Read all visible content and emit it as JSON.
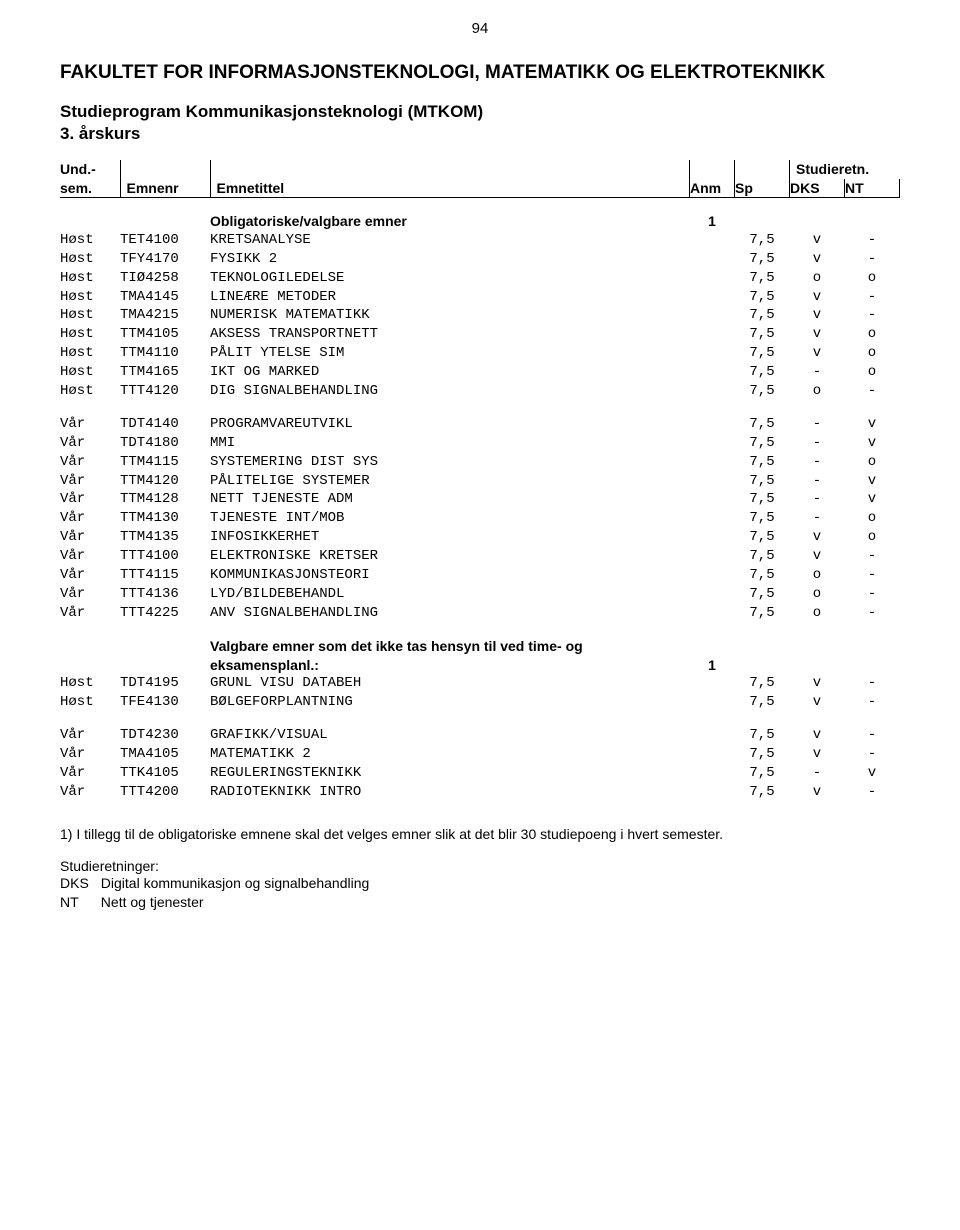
{
  "page_number": "94",
  "faculty_title": "FAKULTET FOR INFORMASJONSTEKNOLOGI, MATEMATIKK OG ELEKTROTEKNIKK",
  "program_title": "Studieprogram Kommunikasjonsteknologi (MTKOM)",
  "year_label": "3. årskurs",
  "headers": {
    "sem_line1": "Und.-",
    "sem_line2": "sem.",
    "emnenr": "Emnenr",
    "emnetittel": "Emnetittel",
    "anm": "Anm",
    "sp": "Sp",
    "studieretn": "Studieretn.",
    "r1": "DKS",
    "r2": "NT"
  },
  "section1_heading": "Obligatoriske/valgbare emner",
  "section1_anm": "1",
  "section1_rows": [
    {
      "sem": "Høst",
      "code": "TET4100",
      "title": "KRETSANALYSE",
      "sp": "7,5",
      "r1": "v",
      "r2": "-"
    },
    {
      "sem": "Høst",
      "code": "TFY4170",
      "title": "FYSIKK 2",
      "sp": "7,5",
      "r1": "v",
      "r2": "-"
    },
    {
      "sem": "Høst",
      "code": "TIØ4258",
      "title": "TEKNOLOGILEDELSE",
      "sp": "7,5",
      "r1": "o",
      "r2": "o"
    },
    {
      "sem": "Høst",
      "code": "TMA4145",
      "title": "LINEÆRE METODER",
      "sp": "7,5",
      "r1": "v",
      "r2": "-"
    },
    {
      "sem": "Høst",
      "code": "TMA4215",
      "title": "NUMERISK MATEMATIKK",
      "sp": "7,5",
      "r1": "v",
      "r2": "-"
    },
    {
      "sem": "Høst",
      "code": "TTM4105",
      "title": "AKSESS TRANSPORTNETT",
      "sp": "7,5",
      "r1": "v",
      "r2": "o"
    },
    {
      "sem": "Høst",
      "code": "TTM4110",
      "title": "PÅLIT YTELSE SIM",
      "sp": "7,5",
      "r1": "v",
      "r2": "o"
    },
    {
      "sem": "Høst",
      "code": "TTM4165",
      "title": "IKT OG MARKED",
      "sp": "7,5",
      "r1": "-",
      "r2": "o"
    },
    {
      "sem": "Høst",
      "code": "TTT4120",
      "title": "DIG SIGNALBEHANDLING",
      "sp": "7,5",
      "r1": "o",
      "r2": "-"
    }
  ],
  "section2_rows": [
    {
      "sem": "Vår",
      "code": "TDT4140",
      "title": "PROGRAMVAREUTVIKL",
      "sp": "7,5",
      "r1": "-",
      "r2": "v"
    },
    {
      "sem": "Vår",
      "code": "TDT4180",
      "title": "MMI",
      "sp": "7,5",
      "r1": "-",
      "r2": "v"
    },
    {
      "sem": "Vår",
      "code": "TTM4115",
      "title": "SYSTEMERING DIST SYS",
      "sp": "7,5",
      "r1": "-",
      "r2": "o"
    },
    {
      "sem": "Vår",
      "code": "TTM4120",
      "title": "PÅLITELIGE SYSTEMER",
      "sp": "7,5",
      "r1": "-",
      "r2": "v"
    },
    {
      "sem": "Vår",
      "code": "TTM4128",
      "title": "NETT TJENESTE ADM",
      "sp": "7,5",
      "r1": "-",
      "r2": "v"
    },
    {
      "sem": "Vår",
      "code": "TTM4130",
      "title": "TJENESTE INT/MOB",
      "sp": "7,5",
      "r1": "-",
      "r2": "o"
    },
    {
      "sem": "Vår",
      "code": "TTM4135",
      "title": "INFOSIKKERHET",
      "sp": "7,5",
      "r1": "v",
      "r2": "o"
    },
    {
      "sem": "Vår",
      "code": "TTT4100",
      "title": "ELEKTRONISKE KRETSER",
      "sp": "7,5",
      "r1": "v",
      "r2": "-"
    },
    {
      "sem": "Vår",
      "code": "TTT4115",
      "title": "KOMMUNIKASJONSTEORI",
      "sp": "7,5",
      "r1": "o",
      "r2": "-"
    },
    {
      "sem": "Vår",
      "code": "TTT4136",
      "title": "LYD/BILDEBEHANDL",
      "sp": "7,5",
      "r1": "o",
      "r2": "-"
    },
    {
      "sem": "Vår",
      "code": "TTT4225",
      "title": "ANV SIGNALBEHANDLING",
      "sp": "7,5",
      "r1": "o",
      "r2": "-"
    }
  ],
  "section3_heading": "Valgbare emner som det ikke tas hensyn til ved time- og eksamensplanl.:",
  "section3_anm": "1",
  "section3_rows": [
    {
      "sem": "Høst",
      "code": "TDT4195",
      "title": "GRUNL VISU DATABEH",
      "sp": "7,5",
      "r1": "v",
      "r2": "-"
    },
    {
      "sem": "Høst",
      "code": "TFE4130",
      "title": "BØLGEFORPLANTNING",
      "sp": "7,5",
      "r1": "v",
      "r2": "-"
    }
  ],
  "section4_rows": [
    {
      "sem": "Vår",
      "code": "TDT4230",
      "title": "GRAFIKK/VISUAL",
      "sp": "7,5",
      "r1": "v",
      "r2": "-"
    },
    {
      "sem": "Vår",
      "code": "TMA4105",
      "title": "MATEMATIKK 2",
      "sp": "7,5",
      "r1": "v",
      "r2": "-"
    },
    {
      "sem": "Vår",
      "code": "TTK4105",
      "title": "REGULERINGSTEKNIKK",
      "sp": "7,5",
      "r1": "-",
      "r2": "v"
    },
    {
      "sem": "Vår",
      "code": "TTT4200",
      "title": "RADIOTEKNIKK INTRO",
      "sp": "7,5",
      "r1": "v",
      "r2": "-"
    }
  ],
  "footnote": "1)  I tillegg til de obligatoriske emnene skal det velges emner slik at det blir 30 studiepoeng i hvert semester.",
  "retn_heading": "Studieretninger:",
  "retn": [
    {
      "code": "DKS",
      "name": "Digital kommunikasjon og signalbehandling"
    },
    {
      "code": "NT",
      "name": "Nett og tjenester"
    }
  ]
}
